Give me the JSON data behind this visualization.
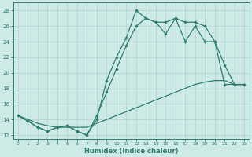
{
  "xlabel": "Humidex (Indice chaleur)",
  "bg_color": "#ceeae7",
  "line_color": "#2e7d6e",
  "grid_color": "#aed4cf",
  "xlim": [
    -0.5,
    23.5
  ],
  "ylim": [
    11.5,
    29
  ],
  "xticks": [
    0,
    1,
    2,
    3,
    4,
    5,
    6,
    7,
    8,
    9,
    10,
    11,
    12,
    13,
    14,
    15,
    16,
    17,
    18,
    19,
    20,
    21,
    22,
    23
  ],
  "yticks": [
    12,
    14,
    16,
    18,
    20,
    22,
    24,
    26,
    28
  ],
  "line1_x": [
    0,
    1,
    2,
    3,
    4,
    5,
    6,
    7,
    8,
    9,
    10,
    11,
    12,
    13,
    14,
    15,
    16,
    17,
    18,
    19,
    20,
    21,
    22,
    23
  ],
  "line1_y": [
    14.5,
    13.8,
    13.0,
    12.5,
    13.0,
    13.2,
    12.5,
    12.0,
    14.0,
    19.0,
    22.0,
    24.5,
    28.0,
    27.0,
    26.5,
    26.5,
    27.0,
    26.5,
    26.5,
    26.0,
    24.0,
    21.0,
    18.5,
    18.5
  ],
  "line2_x": [
    0,
    1,
    2,
    3,
    4,
    5,
    6,
    7,
    8,
    9,
    10,
    11,
    12,
    13,
    14,
    15,
    16,
    17,
    18,
    19,
    20,
    21,
    22,
    23
  ],
  "line2_y": [
    14.5,
    13.8,
    13.0,
    12.5,
    13.0,
    13.2,
    12.5,
    12.0,
    14.5,
    17.5,
    20.5,
    23.5,
    26.0,
    27.0,
    26.5,
    25.0,
    27.0,
    24.0,
    26.0,
    24.0,
    24.0,
    18.5,
    18.5,
    18.5
  ],
  "line3_x": [
    0,
    1,
    2,
    3,
    4,
    5,
    6,
    7,
    8,
    9,
    10,
    11,
    12,
    13,
    14,
    15,
    16,
    17,
    18,
    19,
    20,
    21,
    22,
    23
  ],
  "line3_y": [
    14.5,
    14.0,
    13.5,
    13.2,
    13.0,
    13.0,
    13.0,
    13.0,
    13.5,
    14.0,
    14.5,
    15.0,
    15.5,
    16.0,
    16.5,
    17.0,
    17.5,
    18.0,
    18.5,
    18.8,
    19.0,
    19.0,
    18.5,
    18.5
  ]
}
